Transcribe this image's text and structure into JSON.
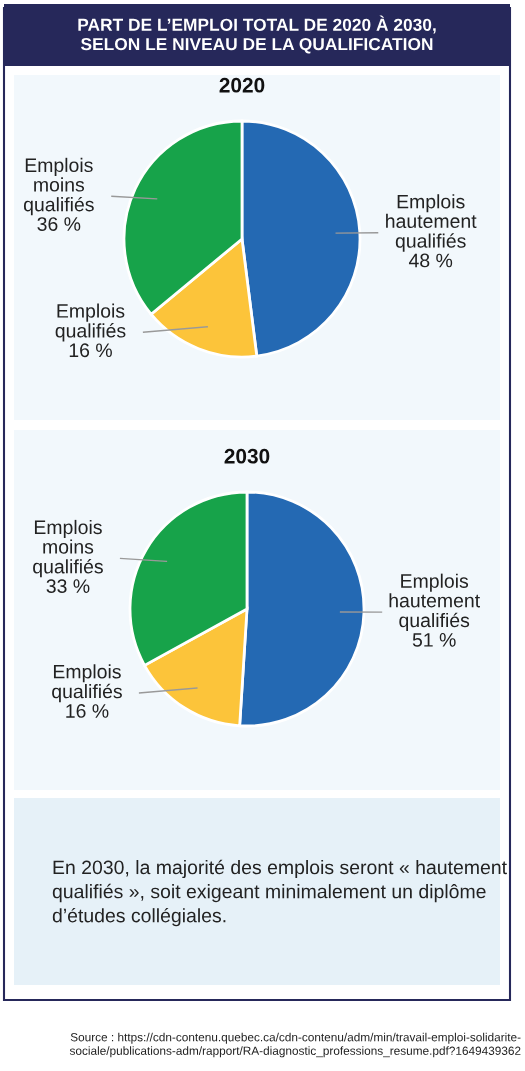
{
  "chart_data": [
    {
      "type": "pie",
      "title": "PART DE L’EMPLOI TOTAL DE 2020 À 2030, SELON LE NIVEAU DE LA QUALIFICATION",
      "subtitle": "2020",
      "categories": [
        "Emplois hautement qualifiés",
        "Emplois qualifiés",
        "Emplois moins qualifiés"
      ],
      "values": [
        48,
        16,
        36
      ],
      "value_labels": [
        "48 %",
        "16 %",
        "36 %"
      ],
      "colors": [
        "#2469b3",
        "#fcc43a",
        "#17a34a"
      ]
    },
    {
      "type": "pie",
      "title": "2030",
      "categories": [
        "Emplois hautement qualifiés",
        "Emplois qualifiés",
        "Emplois moins qualifiés"
      ],
      "values": [
        51,
        16,
        33
      ],
      "value_labels": [
        "51 %",
        "16 %",
        "33 %"
      ],
      "colors": [
        "#2469b3",
        "#fcc43a",
        "#17a34a"
      ],
      "annotations": [
        "En 2030, la majorité des emplois seront « hautement qualifiés », soit exigeant minimalement un diplôme d’études collégiales.",
        "Source : https://cdn-contenu.quebec.ca/cdn-contenu/adm/min/travail-emploi-solidarite-sociale/publications-adm/rapport/RA-diagnostic_professions_resume.pdf?1649439362"
      ]
    }
  ]
}
